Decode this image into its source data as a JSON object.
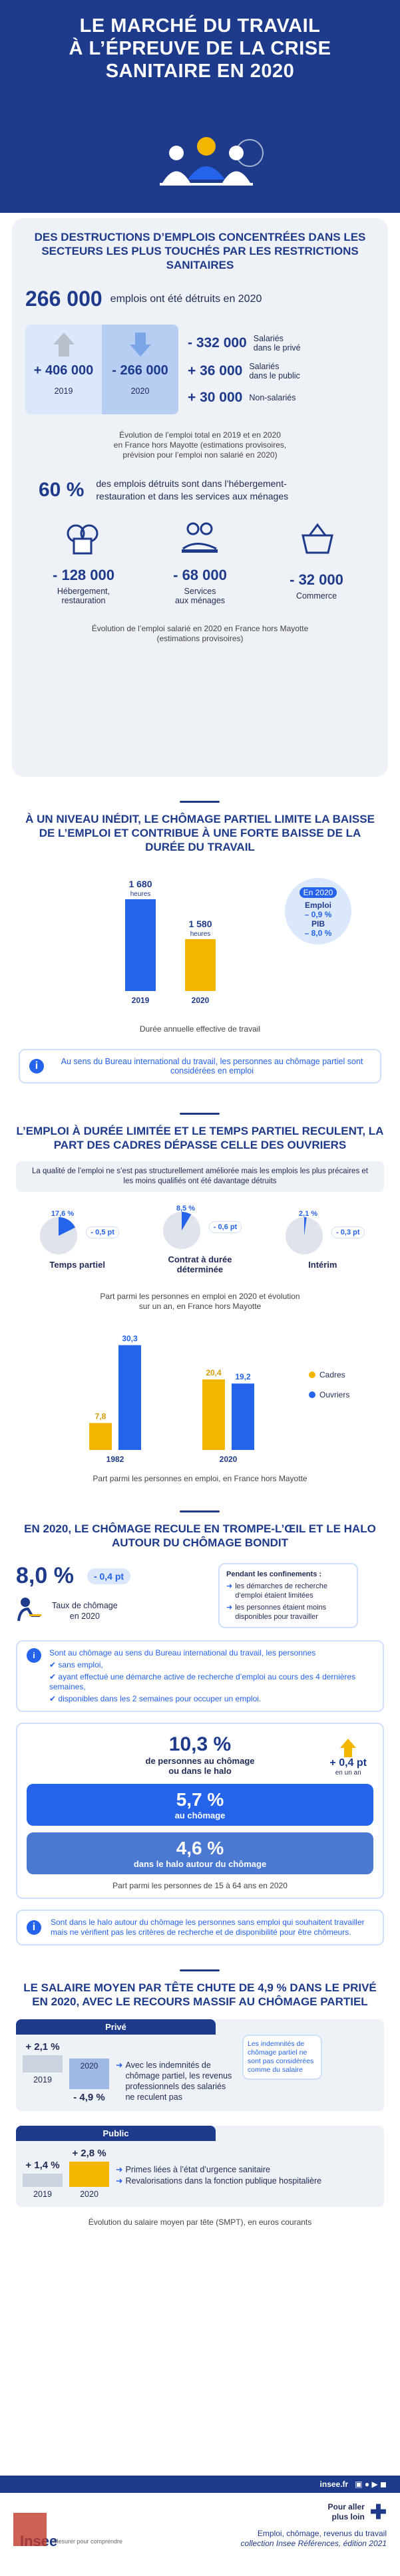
{
  "hero": {
    "title_l1": "LE MARCHÉ DU TRAVAIL",
    "title_l2": "À L’ÉPREUVE DE LA CRISE",
    "title_l3": "SANITAIRE EN 2020"
  },
  "s1": {
    "title": "DES DESTRUCTIONS D’EMPLOIS CONCENTRÉES DANS LES SECTEURS LES PLUS TOUCHÉS PAR LES RESTRICTIONS SANITAIRES",
    "big": "266 000",
    "big_text": "emplois ont été détruits en 2020",
    "v2019": "+ 406 000",
    "y2019": "2019",
    "v2020": "- 266 000",
    "y2020": "2020",
    "prive_v": "- 332 000",
    "prive_t1": "Salariés",
    "prive_t2": "dans le privé",
    "public_v": "+ 36 000",
    "public_t1": "Salariés",
    "public_t2": "dans le public",
    "nonsal_v": "+ 30 000",
    "nonsal_t": "Non-salariés",
    "note1": "Évolution de l’emploi total en 2019 et en 2020",
    "note2": "en France hors Mayotte (estimations provisoires,",
    "note3": "prévision pour l’emploi non salarié en 2020)",
    "pct": "60 %",
    "pct_text": "des emplois détruits sont dans l’hébergement-restauration et dans les services aux ménages",
    "sec": [
      {
        "v": "- 128 000",
        "l1": "Hébergement,",
        "l2": "restauration"
      },
      {
        "v": "- 68 000",
        "l1": "Services",
        "l2": "aux ménages"
      },
      {
        "v": "- 32 000",
        "l1": "Commerce",
        "l2": ""
      }
    ],
    "note4": "Évolution de l’emploi salarié en 2020 en France hors Mayotte",
    "note5": "(estimations provisoires)"
  },
  "s2": {
    "title": "À UN NIVEAU INÉDIT, LE CHÔMAGE PARTIEL LIMITE LA BAISSE DE L’EMPLOI ET CONTRIBUE À UNE FORTE BAISSE DE LA DURÉE DU TRAVAIL",
    "unit": "heures",
    "circle_t": "En 2020",
    "circle_l1": "Emploi",
    "circle_v1": "– 0,9 %",
    "circle_l2": "PIB",
    "circle_v2": "– 8,0 %",
    "caption": "Durée annuelle effective de travail",
    "info": "Au sens du Bureau international du travail, les personnes au chômage partiel sont considérées en emploi"
  },
  "s3": {
    "title": "L’EMPLOI À DURÉE LIMITÉE ET LE TEMPS PARTIEL RECULENT, LA PART DES CADRES DÉPASSE CELLE DES OUVRIERS",
    "banner": "La qualité de l’emploi ne s’est pas structurellement améliorée mais les emplois les plus précaires et les moins qualifiés ont été davantage détruits",
    "pies": [
      {
        "pct": "17,6 %",
        "d": "- 0,5 pt",
        "l1": "Temps partiel",
        "l2": "",
        "v": 17.6
      },
      {
        "pct": "8,5 %",
        "d": "- 0,6 pt",
        "l1": "Contrat à durée",
        "l2": "déterminée",
        "v": 8.5
      },
      {
        "pct": "2,1 %",
        "d": "- 0,3 pt",
        "l1": "Intérim",
        "l2": "",
        "v": 2.1
      }
    ],
    "pie_note1": "Part parmi les personnes en emploi en 2020 et évolution",
    "pie_note2": "sur un an, en France hors Mayotte",
    "leg_c": "Cadres",
    "leg_o": "Ouvriers",
    "bar_note": "Part parmi les personnes en emploi, en France hors Mayotte"
  },
  "s4": {
    "title": "EN 2020, LE CHÔMAGE RECULE EN TROMPE-L’ŒIL ET LE HALO AUTOUR DU CHÔMAGE BONDIT",
    "rate": "8,0 %",
    "rate_d": "- 0,4 pt",
    "rate_l1": "Taux de chômage",
    "rate_l2": "en 2020",
    "conf_t": "Pendant les confinements :",
    "conf_1": "les démarches de recherche d’emploi étaient limitées",
    "conf_2": "les personnes étaient moins disponibles pour travailler",
    "bit_t": "Sont au chômage au sens du Bureau international du travail, les personnes",
    "bit_1": "sans emploi,",
    "bit_2": "ayant effectué une démarche active de recherche d’emploi au cours des 4 dernières semaines,",
    "bit_3": "disponibles dans les 2 semaines pour occuper un emploi.",
    "halo_v": "10,3 %",
    "halo_l1": "de personnes au chômage",
    "halo_l2": "ou dans le halo",
    "halo_d": "+ 0,4 pt",
    "halo_d2": "en un an",
    "ch_v": "5,7 %",
    "ch_l": "au chômage",
    "ha_v": "4,6 %",
    "ha_l": "dans le halo autour du chômage",
    "halo_note": "Part parmi les personnes de 15 à 64 ans en 2020",
    "info": "Sont dans le halo autour du chômage les personnes sans emploi qui souhaitent travailler mais ne vérifient pas les critères de recherche et de disponibilité pour être chômeurs."
  },
  "s5": {
    "title": "LE SALAIRE MOYEN PAR TÊTE CHUTE DE 4,9 % DANS LE PRIVÉ EN 2020, AVEC LE RECOURS MASSIF AU CHÔMAGE PARTIEL",
    "prive": "Privé",
    "public": "Public",
    "p19": "+ 2,1 %",
    "p20": "- 4,9 %",
    "y19": "2019",
    "y20": "2020",
    "p_t1": "Avec les indemnités de chômage partiel, les revenus professionnels des salariés ne reculent pas",
    "side": "Les indemnités de chômage partiel ne sont pas considérées comme du salaire",
    "q19": "+ 1,4 %",
    "q20": "+ 2,8 %",
    "q_t1": "Primes liées à l’état d’urgence sanitaire",
    "q_t2": "Revalorisations dans la fonction publique hospitalière",
    "note": "Évolution du salaire moyen par tête (SMPT), en euros courants"
  },
  "footer": {
    "site": "insee.fr",
    "pal1": "Pour aller",
    "pal2": "plus loin",
    "ref1": "Emploi, chômage, revenus du travail",
    "ref2": "collection Insee Références, édition 2021",
    "logo": "Insee",
    "tag": "Mesurer pour comprendre"
  },
  "chart_data": [
    {
      "type": "bar",
      "categories": [
        "2019",
        "2020"
      ],
      "values": [
        1680,
        1580
      ],
      "ylabel": "heures",
      "title": "Durée annuelle effective de travail"
    },
    {
      "type": "bar",
      "categories": [
        "1982",
        "2020"
      ],
      "series": [
        {
          "name": "Cadres",
          "values": [
            7.8,
            20.4
          ]
        },
        {
          "name": "Ouvriers",
          "values": [
            30.3,
            19.2
          ]
        }
      ],
      "title": "Part parmi les personnes en emploi, en France hors Mayotte"
    }
  ],
  "colors": {
    "navy": "#1e3a8a",
    "blue": "#2563eb",
    "yellow": "#f2b600",
    "light": "#eef1f5"
  }
}
